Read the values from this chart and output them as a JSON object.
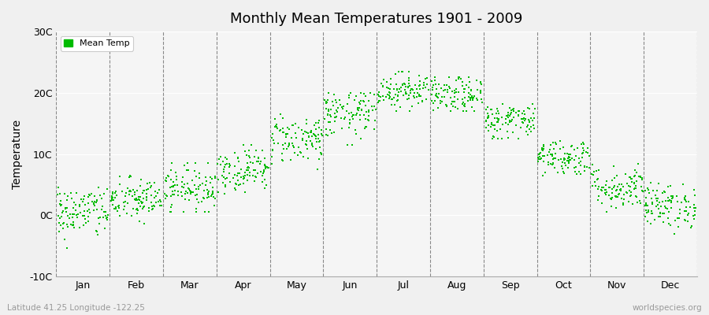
{
  "title": "Monthly Mean Temperatures 1901 - 2009",
  "ylabel": "Temperature",
  "xlabel_labels": [
    "Jan",
    "Feb",
    "Mar",
    "Apr",
    "May",
    "Jun",
    "Jul",
    "Aug",
    "Sep",
    "Oct",
    "Nov",
    "Dec"
  ],
  "ylim": [
    -10,
    30
  ],
  "ytick_labels": [
    "-10C",
    "0C",
    "10C",
    "20C",
    "30C"
  ],
  "ytick_values": [
    -10,
    0,
    10,
    20,
    30
  ],
  "dot_color": "#00bb00",
  "dot_size": 3,
  "background_color": "#f0f0f0",
  "plot_bg_color": "#f5f5f5",
  "subtitle_left": "Latitude 41.25 Longitude -122.25",
  "subtitle_right": "worldspecies.org",
  "legend_label": "Mean Temp",
  "years": 109,
  "monthly_means": [
    0.5,
    2.5,
    4.5,
    7.5,
    12.5,
    16.5,
    20.5,
    19.5,
    15.5,
    9.5,
    4.5,
    1.5
  ],
  "monthly_stds": [
    2.2,
    1.8,
    1.8,
    1.8,
    2.0,
    2.0,
    1.5,
    1.5,
    1.5,
    1.5,
    1.8,
    1.8
  ],
  "monthly_mins": [
    -7.5,
    -1.5,
    0.5,
    3.5,
    7.5,
    11.5,
    17.0,
    17.0,
    12.5,
    6.5,
    0.5,
    -3.0
  ],
  "monthly_maxs": [
    4.5,
    6.5,
    8.5,
    11.5,
    16.5,
    20.0,
    23.5,
    22.5,
    19.5,
    13.5,
    8.5,
    5.5
  ]
}
